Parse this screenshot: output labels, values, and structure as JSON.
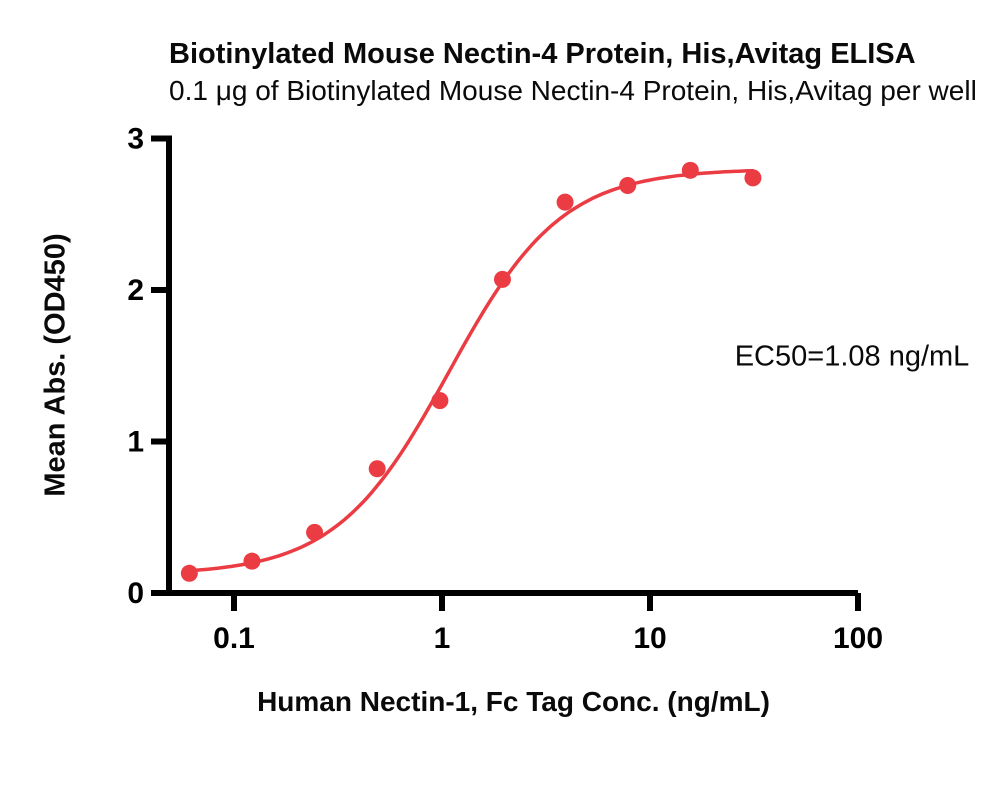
{
  "header": {
    "title": "Biotinylated Mouse Nectin-4 Protein, His,Avitag ELISA",
    "subtitle": "0.1 μg of Biotinylated Mouse Nectin-4 Protein, His,Avitag per well"
  },
  "colors": {
    "accent_red": "#EB3C43",
    "axis_black": "#000000",
    "background": "#FFFFFF",
    "text_black": "#0A0A0A"
  },
  "chart_data": {
    "type": "scatter",
    "x_scale": "log",
    "title": "Biotinylated Mouse Nectin-4 Protein, His,Avitag ELISA",
    "subtitle": "0.1 μg of Biotinylated Mouse Nectin-4 Protein, His,Avitag per well",
    "xlabel": "Human Nectin-1, Fc Tag Conc. (ng/mL)",
    "ylabel": "Mean Abs. (OD450)",
    "xlim": [
      0.049,
      100
    ],
    "ylim": [
      0,
      3
    ],
    "grid": false,
    "legend": "none",
    "x_ticks": [
      0.1,
      1,
      10,
      100
    ],
    "x_tick_labels": [
      "0.1",
      "1",
      "10",
      "100"
    ],
    "y_ticks": [
      0,
      1,
      2,
      3
    ],
    "y_tick_labels": [
      "0",
      "1",
      "2",
      "3"
    ],
    "series": [
      {
        "name": "Human Nectin-1, Fc Tag",
        "x": [
          0.061,
          0.122,
          0.244,
          0.488,
          0.977,
          1.953,
          3.906,
          7.813,
          15.625,
          31.25
        ],
        "y": [
          0.13,
          0.21,
          0.4,
          0.82,
          1.27,
          2.07,
          2.58,
          2.69,
          2.79,
          2.74
        ],
        "color": "#EB3C43",
        "marker": "circle"
      }
    ],
    "fit_curve": {
      "model": "4PL",
      "bottom": 0.12,
      "top": 2.8,
      "ec50": 1.08,
      "hill": 1.6,
      "color": "#EB3C43"
    },
    "annotation": "EC50=1.08 ng/mL"
  }
}
